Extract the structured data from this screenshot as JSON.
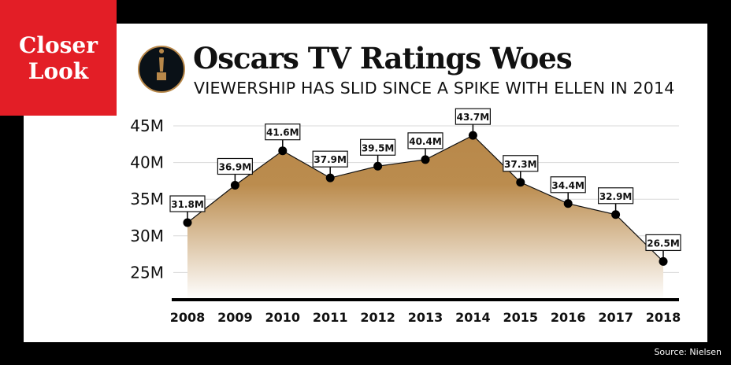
{
  "badge": {
    "line1": "Closer",
    "line2": "Look"
  },
  "icon": "oscar-statuette-icon",
  "chart_data": {
    "type": "area",
    "title": "Oscars TV Ratings Woes",
    "subtitle": "VIEWERSHIP HAS SLID SINCE A SPIKE WITH ELLEN IN 2014",
    "categories": [
      "2008",
      "2009",
      "2010",
      "2011",
      "2012",
      "2013",
      "2014",
      "2015",
      "2016",
      "2017",
      "2018"
    ],
    "values": [
      31.8,
      36.9,
      41.6,
      37.9,
      39.5,
      40.4,
      43.7,
      37.3,
      34.4,
      32.9,
      26.5
    ],
    "labels": [
      "31.8M",
      "36.9M",
      "41.6M",
      "37.9M",
      "39.5M",
      "40.4M",
      "43.7M",
      "37.3M",
      "34.4M",
      "32.9M",
      "26.5M"
    ],
    "yticks": [
      "25M",
      "30M",
      "35M",
      "40M",
      "45M"
    ],
    "ytick_values": [
      25,
      30,
      35,
      40,
      45
    ],
    "ylim": [
      21.3,
      45
    ],
    "grid": true,
    "colors": {
      "fill": "#b8884a",
      "accent": "#e31e26"
    },
    "source": "Source: Nielsen"
  }
}
